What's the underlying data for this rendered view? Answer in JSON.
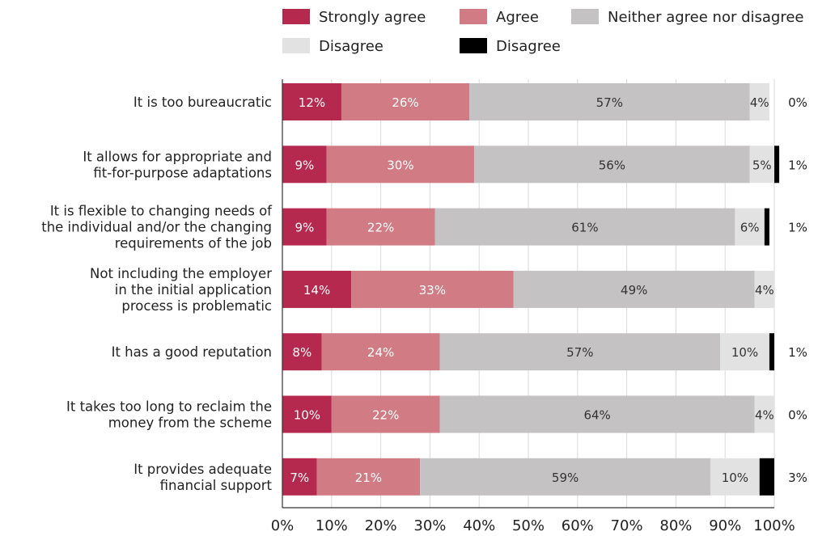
{
  "chart_data": {
    "type": "bar",
    "orientation": "horizontal",
    "stacked": true,
    "title": "",
    "xlabel": "",
    "ylabel": "",
    "xlim": [
      0,
      100
    ],
    "x_tick_labels": [
      "0%",
      "10%",
      "20%",
      "30%",
      "40%",
      "50%",
      "60%",
      "70%",
      "80%",
      "90%",
      "100%"
    ],
    "grid": true,
    "legend_position": "top",
    "categories": [
      [
        "It is too bureaucratic"
      ],
      [
        "It allows for appropriate and",
        "fit-for-purpose adaptations"
      ],
      [
        "It is flexible to changing needs of",
        "the individual and/or the changing",
        "requirements of the job"
      ],
      [
        "Not including the employer",
        "in the initial application",
        "process is problematic"
      ],
      [
        "It has a good reputation"
      ],
      [
        "It takes too long to reclaim the",
        "money from the scheme"
      ],
      [
        "It provides adequate",
        "financial support"
      ]
    ],
    "series": [
      {
        "name": "Strongly agree",
        "color": "#b5294e",
        "label_color": "#ffffff",
        "values": [
          12,
          9,
          9,
          14,
          8,
          10,
          7
        ],
        "labels": [
          "12%",
          "9%",
          "9%",
          "14%",
          "8%",
          "10%",
          "7%"
        ]
      },
      {
        "name": "Agree",
        "color": "#d17b84",
        "label_color": "#ffffff",
        "values": [
          26,
          30,
          22,
          33,
          24,
          22,
          21
        ],
        "labels": [
          "26%",
          "30%",
          "22%",
          "33%",
          "24%",
          "22%",
          "21%"
        ]
      },
      {
        "name": "Neither agree nor disagree",
        "color": "#c4c2c3",
        "label_color": "#333333",
        "values": [
          57,
          56,
          61,
          49,
          57,
          64,
          59
        ],
        "labels": [
          "57%",
          "56%",
          "61%",
          "49%",
          "57%",
          "64%",
          "59%"
        ]
      },
      {
        "name": "Disagree",
        "color": "#e2e2e2",
        "label_color": "#333333",
        "values": [
          4,
          5,
          6,
          4,
          10,
          4,
          10
        ],
        "labels": [
          "4%",
          "5%",
          "6%",
          "4%",
          "10%",
          "4%",
          "10%"
        ]
      },
      {
        "name": "Disagree",
        "color": "#000000",
        "label_color": "#222222",
        "values": [
          0,
          1,
          1,
          0,
          1,
          0,
          3
        ],
        "labels": [
          "0%",
          "1%",
          "1%",
          "",
          "1%",
          "0%",
          "3%"
        ]
      }
    ]
  }
}
